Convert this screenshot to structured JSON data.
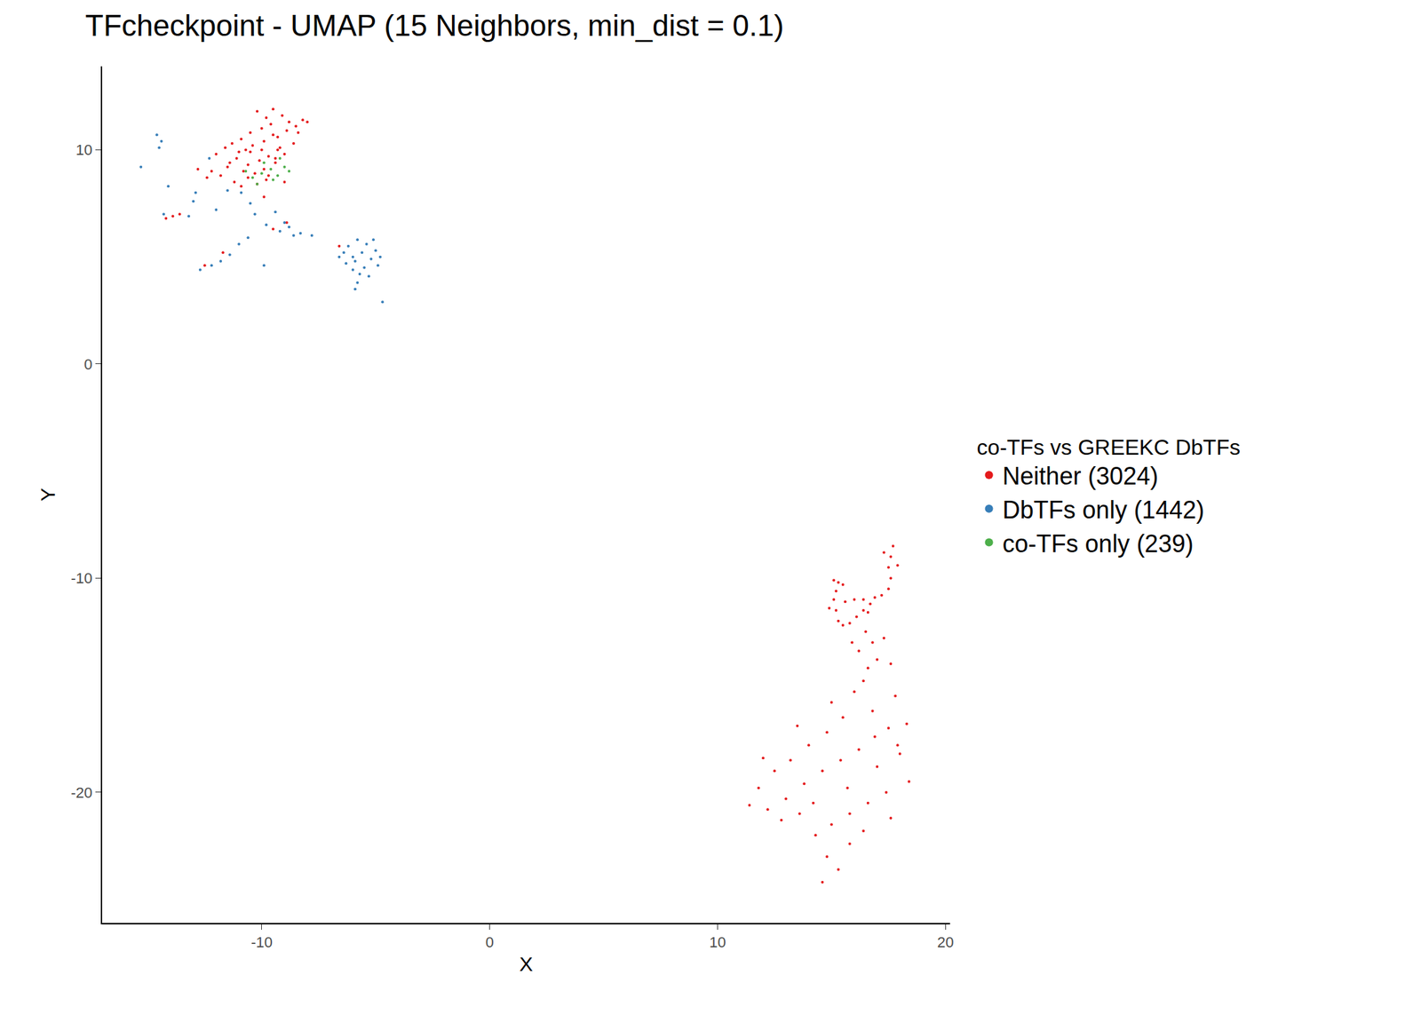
{
  "chart_data": {
    "type": "scatter",
    "title": "TFcheckpoint - UMAP (15 Neighbors, min_dist = 0.1)",
    "x_label": "X",
    "y_label": "Y",
    "legend_title": "co-TFs vs GREEKC DbTFs",
    "legend": "right",
    "grid": false,
    "marker": "circle",
    "xlim": [
      -17.0,
      20.2
    ],
    "ylim": [
      -26.1,
      13.9
    ],
    "xticks": [
      -10,
      0,
      10,
      20
    ],
    "yticks": [
      -20,
      -10,
      0,
      10
    ],
    "series": [
      {
        "name": "Neither (3024)",
        "color": "#E41A1C",
        "x": [
          -10.2,
          -9.8,
          -9.5,
          -9.1,
          -8.8,
          -9.6,
          -10.0,
          -10.5,
          -10.9,
          -11.3,
          -11.6,
          -12.0,
          -11.0,
          -10.4,
          -9.9,
          -9.3,
          -8.9,
          -8.5,
          -8.2,
          -9.7,
          -10.1,
          -10.6,
          -11.1,
          -11.5,
          -10.8,
          -10.3,
          -9.4,
          -9.0,
          -9.8,
          -10.6,
          -11.8,
          -12.2,
          -10.0,
          -9.2,
          -8.6,
          -9.5,
          -10.7,
          -11.4,
          -9.9,
          -10.2,
          -9.0,
          -8.0,
          -8.4,
          -9.3,
          -10.5,
          -11.2,
          -12.4,
          -10.9,
          -9.7,
          -9.4,
          -13.6,
          -13.9,
          -6.6,
          -12.5,
          -9.5,
          -8.9,
          -12.8,
          -14.2,
          -11.7,
          -9.9,
          15.1,
          15.3,
          15.5,
          15.2,
          15.1,
          15.2,
          15.3,
          15.5,
          15.8,
          16.1,
          16.4,
          16.7,
          15.6,
          16.0,
          16.4,
          16.9,
          17.2,
          17.5,
          17.6,
          17.5,
          17.6,
          17.7,
          17.3,
          17.9,
          14.9,
          16.6,
          16.5,
          16.8,
          16.2,
          17.0,
          16.6,
          17.3,
          15.9,
          16.4,
          17.6,
          16.0,
          17.8,
          18.3,
          18.0,
          18.4,
          17.5,
          16.8,
          15.5,
          14.8,
          14.0,
          13.2,
          12.5,
          11.8,
          11.4,
          12.2,
          13.0,
          13.8,
          14.6,
          15.4,
          16.2,
          17.0,
          17.4,
          16.6,
          15.8,
          15.0,
          14.3,
          14.8,
          15.3,
          14.6,
          15.8,
          16.4,
          17.6,
          12.8,
          13.6,
          14.2,
          15.7,
          16.9,
          15.0,
          13.5,
          12.0,
          17.9
        ],
        "y": [
          11.8,
          11.5,
          11.9,
          11.6,
          11.3,
          11.2,
          11.0,
          10.8,
          10.5,
          10.3,
          10.1,
          9.8,
          9.9,
          10.2,
          10.4,
          10.6,
          10.9,
          11.1,
          11.4,
          9.7,
          9.5,
          9.3,
          9.6,
          9.2,
          9.0,
          8.9,
          9.4,
          9.8,
          8.6,
          8.7,
          8.8,
          9.0,
          10.0,
          10.1,
          10.3,
          10.7,
          10.0,
          9.4,
          9.1,
          8.4,
          8.5,
          11.3,
          10.8,
          10.0,
          9.9,
          8.5,
          8.7,
          8.3,
          8.8,
          9.6,
          7.0,
          6.9,
          5.5,
          4.6,
          6.3,
          6.6,
          9.1,
          6.8,
          5.2,
          7.8,
          -10.1,
          -10.2,
          -10.3,
          -10.6,
          -11.0,
          -11.5,
          -12.0,
          -12.2,
          -12.1,
          -11.8,
          -11.5,
          -11.2,
          -11.1,
          -11.0,
          -11.0,
          -10.9,
          -10.8,
          -10.5,
          -10.0,
          -9.5,
          -9.0,
          -8.5,
          -8.8,
          -9.4,
          -11.4,
          -11.6,
          -12.5,
          -13.0,
          -13.4,
          -13.8,
          -14.2,
          -12.8,
          -13.0,
          -14.8,
          -14.0,
          -15.3,
          -15.5,
          -16.8,
          -18.2,
          -19.5,
          -17.0,
          -16.2,
          -16.5,
          -17.2,
          -17.8,
          -18.5,
          -19.0,
          -19.8,
          -20.6,
          -20.8,
          -20.3,
          -19.6,
          -19.0,
          -18.5,
          -18.0,
          -18.8,
          -20.0,
          -20.5,
          -21.0,
          -21.5,
          -22.0,
          -23.0,
          -23.6,
          -24.2,
          -22.4,
          -21.8,
          -21.2,
          -21.3,
          -21.0,
          -20.5,
          -19.8,
          -17.4,
          -15.8,
          -16.9,
          -18.4,
          -17.8
        ]
      },
      {
        "name": "DbTFs only (1442)",
        "color": "#377EB8",
        "x": [
          -5.8,
          -5.4,
          -6.2,
          -5.0,
          -5.6,
          -6.0,
          -6.4,
          -5.2,
          -4.9,
          -5.5,
          -6.0,
          -6.3,
          -5.7,
          -5.3,
          -5.8,
          -5.9,
          -4.8,
          -6.6,
          -5.1,
          -5.9,
          -9.2,
          -8.6,
          -9.0,
          -8.3,
          -9.8,
          -10.3,
          -10.5,
          -9.4,
          -8.8,
          -7.8,
          -11.0,
          -11.4,
          -11.8,
          -12.2,
          -12.7,
          -10.6,
          -9.9,
          -14.6,
          -14.4,
          -14.5,
          -15.3,
          -14.1,
          -14.3,
          -13.0,
          -12.9,
          -13.2,
          -12.3,
          -11.5,
          -10.9,
          -4.7,
          -12.0
        ],
        "y": [
          5.8,
          5.6,
          5.5,
          5.3,
          5.2,
          5.0,
          5.2,
          4.9,
          4.6,
          4.5,
          4.4,
          4.7,
          4.2,
          4.1,
          3.8,
          3.5,
          5.0,
          5.0,
          5.8,
          4.8,
          6.2,
          6.0,
          6.6,
          6.1,
          6.5,
          7.0,
          7.5,
          7.1,
          6.4,
          6.0,
          5.6,
          5.1,
          4.8,
          4.6,
          4.4,
          5.9,
          4.6,
          10.7,
          10.4,
          10.1,
          9.2,
          8.3,
          7.0,
          7.6,
          8.0,
          6.9,
          9.6,
          8.1,
          8.0,
          2.9,
          7.2
        ]
      },
      {
        "name": "co-TFs only (239)",
        "color": "#4DAF4A",
        "x": [
          -10.0,
          -9.6,
          -9.3,
          -10.4,
          -9.9,
          -9.0,
          -10.2,
          -9.5,
          -8.8,
          -10.7,
          -9.2
        ],
        "y": [
          8.9,
          9.1,
          8.8,
          8.7,
          9.4,
          9.2,
          8.4,
          8.6,
          9.0,
          9.0,
          9.6
        ]
      }
    ]
  }
}
